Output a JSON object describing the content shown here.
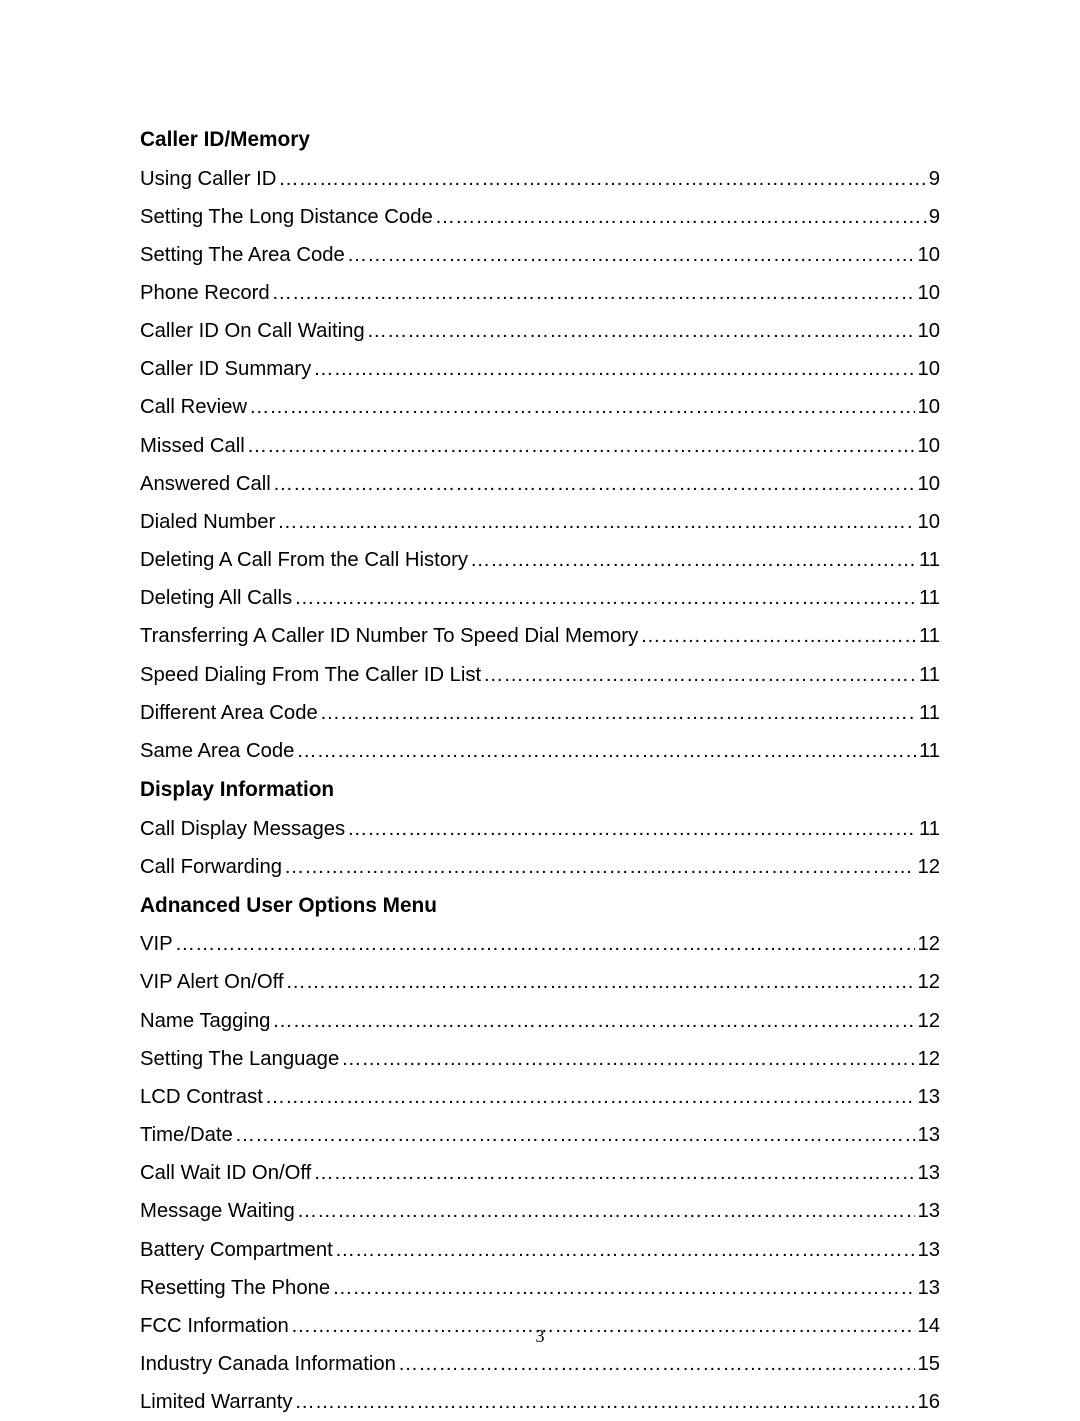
{
  "page_number": "3",
  "sections": [
    {
      "heading": "Caller ID/Memory",
      "entries": [
        {
          "title": "Using Caller ID ",
          "page": "9"
        },
        {
          "title": "Setting The Long Distance Code",
          "page": "9"
        },
        {
          "title": "Setting The Area Code",
          "page": "10"
        },
        {
          "title": "Phone Record",
          "page": "10"
        },
        {
          "title": "Caller ID On Call Waiting",
          "page": "10"
        },
        {
          "title": "Caller ID Summary",
          "page": "10"
        },
        {
          "title": "Call Review",
          "page": "10"
        },
        {
          "title": "Missed Call ",
          "page": "10"
        },
        {
          "title": "Answered Call",
          "page": "10"
        },
        {
          "title": "Dialed Number",
          "page": "10"
        },
        {
          "title": "Deleting A Call From the Call History ",
          "page": "11"
        },
        {
          "title": "Deleting All Calls",
          "page": "11"
        },
        {
          "title": "Transferring A Caller ID Number To Speed Dial Memory",
          "page": "11"
        },
        {
          "title": "Speed Dialing From The Caller ID List ",
          "page": "11"
        },
        {
          "title": "Different Area Code",
          "page": "11"
        },
        {
          "title": "Same Area Code",
          "page": "11"
        }
      ]
    },
    {
      "heading": "Display Information",
      "entries": [
        {
          "title": "Call Display Messages ",
          "page": "11"
        },
        {
          "title": "Call Forwarding ",
          "page": "12"
        }
      ]
    },
    {
      "heading": "Adnanced User Options Menu",
      "entries": [
        {
          "title": "VIP",
          "page": "12"
        },
        {
          "title": "VIP Alert On/Off",
          "page": "12"
        },
        {
          "title": "Name Tagging",
          "page": "12"
        },
        {
          "title": "Setting The Language",
          "page": "12"
        },
        {
          "title": "LCD Contrast",
          "page": "13"
        },
        {
          "title": "Time/Date",
          "page": "13"
        },
        {
          "title": "Call Wait ID On/Off",
          "page": "13"
        },
        {
          "title": "Message Waiting ",
          "page": "13"
        },
        {
          "title": "Battery Compartment ",
          "page": "13"
        },
        {
          "title": "Resetting The Phone",
          "page": "13"
        },
        {
          "title": "FCC Information ",
          "page": "14"
        },
        {
          "title": "Industry Canada Information",
          "page": "15"
        },
        {
          "title": "Limited Warranty",
          "page": "16"
        }
      ]
    }
  ]
}
